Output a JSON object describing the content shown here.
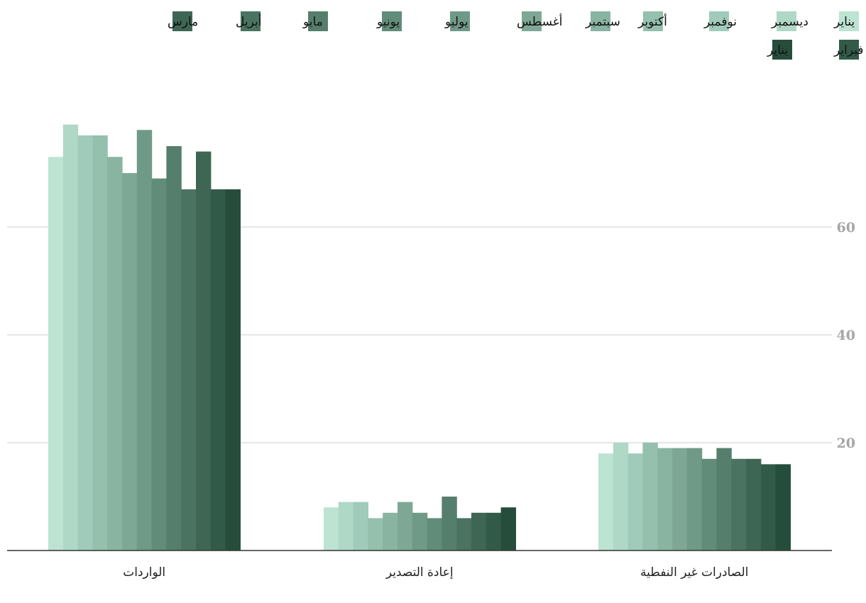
{
  "chart_data": {
    "type": "bar",
    "categories": [
      "الواردات",
      "إعادة التصدير",
      "الصادرات غير النفطية"
    ],
    "series": [
      {
        "name": "يناير",
        "color": "#bde3d3",
        "values": [
          73,
          8,
          18
        ]
      },
      {
        "name": "ديسمبر",
        "color": "#afd8c7",
        "values": [
          79,
          9,
          20
        ]
      },
      {
        "name": "نوفمبر",
        "color": "#a0cbba",
        "values": [
          77,
          9,
          18
        ]
      },
      {
        "name": "أكتوبر",
        "color": "#94c0ad",
        "values": [
          77,
          6,
          20
        ]
      },
      {
        "name": "سبتمبر",
        "color": "#89b4a1",
        "values": [
          73,
          7,
          19
        ]
      },
      {
        "name": "أغسطس",
        "color": "#7ea895",
        "values": [
          70,
          9,
          19
        ]
      },
      {
        "name": "يوليو",
        "color": "#6f9a87",
        "values": [
          78,
          7,
          19
        ]
      },
      {
        "name": "يونيو",
        "color": "#618c79",
        "values": [
          69,
          6,
          17
        ]
      },
      {
        "name": "مايو",
        "color": "#557f6c",
        "values": [
          75,
          10,
          19
        ]
      },
      {
        "name": "أبريل",
        "color": "#4a7461",
        "values": [
          67,
          6,
          17
        ]
      },
      {
        "name": "مارس",
        "color": "#3f6654",
        "values": [
          74,
          7,
          17
        ]
      },
      {
        "name": "فبراير",
        "color": "#325a48",
        "values": [
          67,
          7,
          16
        ]
      },
      {
        "name": "يناير",
        "color": "#264d3c",
        "values": [
          67,
          8,
          16
        ]
      }
    ],
    "y_ticks": [
      20,
      40,
      60
    ],
    "ylim": [
      0,
      80
    ],
    "grid": true,
    "legend_position": "top-right"
  }
}
